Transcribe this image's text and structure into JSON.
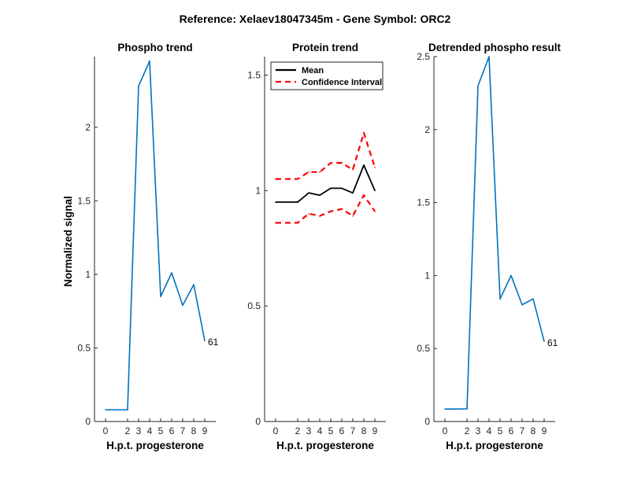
{
  "suptitle": "Reference:  Xelaev18047345m - Gene Symbol:  ORC2",
  "colors": {
    "phospho": "#0072BD",
    "mean": "#000000",
    "ci": "#FF0000",
    "axis": "#262626"
  },
  "chart_data": [
    {
      "type": "line",
      "title": "Phospho trend",
      "xlabel": "H.p.t. progesterone",
      "ylabel": "Normalized signal",
      "x": [
        0,
        2,
        3,
        4,
        5,
        6,
        7,
        8,
        9
      ],
      "xticks": [
        "0",
        "2",
        "3",
        "4",
        "5",
        "6",
        "7",
        "8",
        "9"
      ],
      "yticks": [
        "0",
        "0.5",
        "1",
        "1.5",
        "2"
      ],
      "ylim": [
        0,
        2.48
      ],
      "series": [
        {
          "values": [
            0.08,
            0.08,
            2.28,
            2.45,
            0.85,
            1.01,
            0.79,
            0.93,
            0.55
          ]
        }
      ],
      "annotation": "61"
    },
    {
      "type": "line",
      "title": "Protein trend",
      "xlabel": "H.p.t. progesterone",
      "ylabel": "",
      "x": [
        0,
        2,
        3,
        4,
        5,
        6,
        7,
        8,
        9
      ],
      "xticks": [
        "0",
        "2",
        "3",
        "4",
        "5",
        "6",
        "7",
        "8",
        "9"
      ],
      "yticks": [
        "0",
        "0.5",
        "1",
        "1.5"
      ],
      "ylim": [
        0,
        1.58
      ],
      "legend": "top-left",
      "series": [
        {
          "name": "Mean",
          "values": [
            0.95,
            0.95,
            0.99,
            0.98,
            1.01,
            1.01,
            0.99,
            1.11,
            1.0
          ]
        },
        {
          "name": "Confidence Interval",
          "values": [
            1.05,
            1.05,
            1.08,
            1.08,
            1.12,
            1.12,
            1.09,
            1.25,
            1.1
          ]
        },
        {
          "values": [
            0.86,
            0.86,
            0.9,
            0.89,
            0.91,
            0.92,
            0.89,
            0.98,
            0.91
          ]
        }
      ]
    },
    {
      "type": "line",
      "title": "Detrended phospho result",
      "xlabel": "H.p.t. progesterone",
      "ylabel": "",
      "x": [
        0,
        2,
        3,
        4,
        5,
        6,
        7,
        8,
        9
      ],
      "xticks": [
        "0",
        "2",
        "3",
        "4",
        "5",
        "6",
        "7",
        "8",
        "9"
      ],
      "yticks": [
        "0",
        "0.5",
        "1",
        "1.5",
        "2",
        "2.5"
      ],
      "ylim": [
        0,
        2.5
      ],
      "series": [
        {
          "values": [
            0.085,
            0.087,
            2.3,
            2.5,
            0.84,
            1.0,
            0.8,
            0.84,
            0.55
          ]
        }
      ],
      "annotation": "61"
    }
  ]
}
